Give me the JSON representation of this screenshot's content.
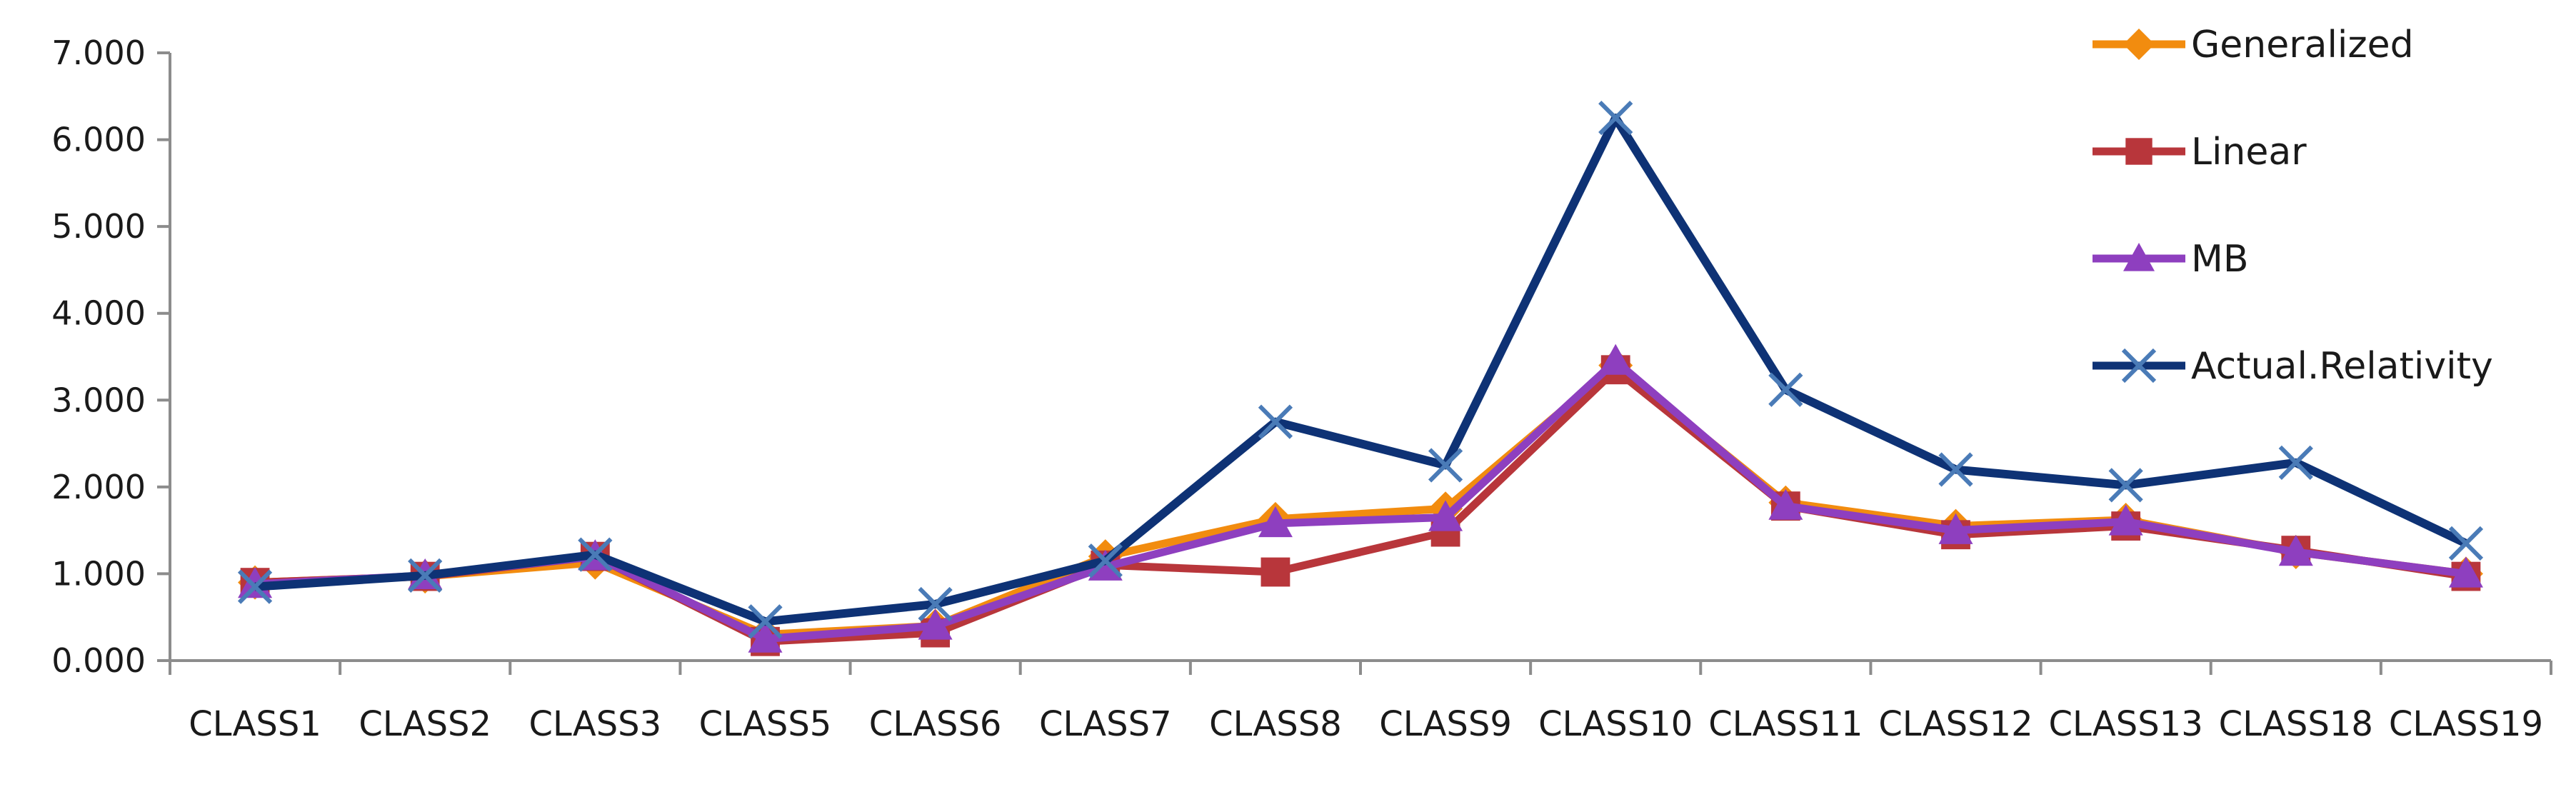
{
  "chart_data": {
    "type": "line",
    "title": "",
    "xlabel": "",
    "ylabel": "",
    "categories": [
      "CLASS1",
      "CLASS2",
      "CLASS3",
      "CLASS5",
      "CLASS6",
      "CLASS7",
      "CLASS8",
      "CLASS9",
      "CLASS10",
      "CLASS11",
      "CLASS12",
      "CLASS13",
      "CLASS18",
      "CLASS19"
    ],
    "ylim": [
      0,
      7
    ],
    "yticks": [
      "0.000",
      "1.000",
      "2.000",
      "3.000",
      "4.000",
      "5.000",
      "6.000",
      "7.000"
    ],
    "grid": false,
    "legend_position": "right",
    "series": [
      {
        "name": "Generalized",
        "color": "#F28C0F",
        "marker": "diamond",
        "values": [
          0.9,
          0.97,
          1.13,
          0.3,
          0.4,
          1.2,
          1.63,
          1.75,
          3.4,
          1.82,
          1.55,
          1.62,
          1.25,
          1.0
        ]
      },
      {
        "name": "Linear",
        "color": "#B8363B",
        "marker": "square",
        "values": [
          0.9,
          0.97,
          1.2,
          0.22,
          0.32,
          1.1,
          1.02,
          1.48,
          3.35,
          1.78,
          1.45,
          1.55,
          1.27,
          0.97
        ]
      },
      {
        "name": "MB",
        "color": "#8E3FBF",
        "marker": "triangle",
        "values": [
          0.88,
          0.98,
          1.2,
          0.25,
          0.4,
          1.08,
          1.58,
          1.65,
          3.45,
          1.78,
          1.5,
          1.6,
          1.25,
          1.0
        ]
      },
      {
        "name": "Actual.Relativity",
        "color": "#0E3275",
        "marker": "x",
        "values": [
          0.85,
          0.98,
          1.22,
          0.45,
          0.65,
          1.15,
          2.75,
          2.25,
          6.25,
          3.12,
          2.2,
          2.02,
          2.28,
          1.35
        ]
      }
    ]
  }
}
